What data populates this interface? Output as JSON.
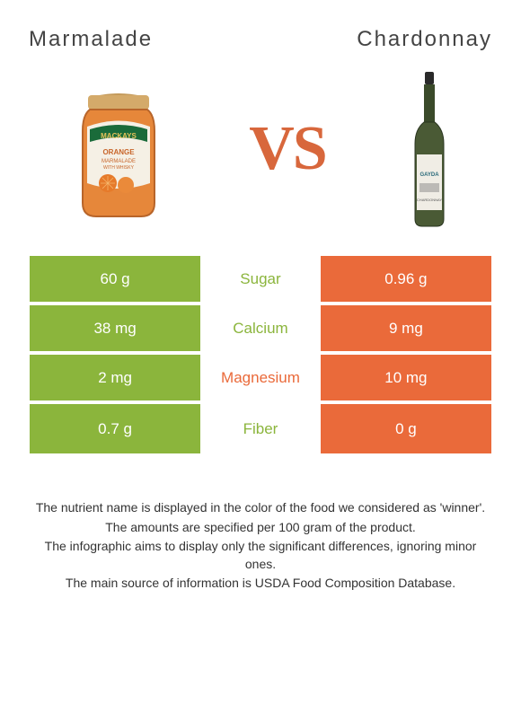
{
  "title_left": "Marmalade",
  "title_right": "Chardonnay",
  "vs_text": "VS",
  "colors": {
    "left": "#8bb53c",
    "right": "#ea6a3a",
    "neutral_text": "#444444"
  },
  "rows": [
    {
      "left": "60 g",
      "label": "Sugar",
      "right": "0.96 g",
      "winner": "left"
    },
    {
      "left": "38 mg",
      "label": "Calcium",
      "right": "9 mg",
      "winner": "left"
    },
    {
      "left": "2 mg",
      "label": "Magnesium",
      "right": "10 mg",
      "winner": "right"
    },
    {
      "left": "0.7 g",
      "label": "Fiber",
      "right": "0 g",
      "winner": "left"
    }
  ],
  "footnotes": [
    "The nutrient name is displayed in the color of the food we considered as 'winner'.",
    "The amounts are specified per 100 gram of the product.",
    "The infographic aims to display only the significant differences, ignoring minor ones.",
    "The main source of information is USDA Food Composition Database."
  ]
}
